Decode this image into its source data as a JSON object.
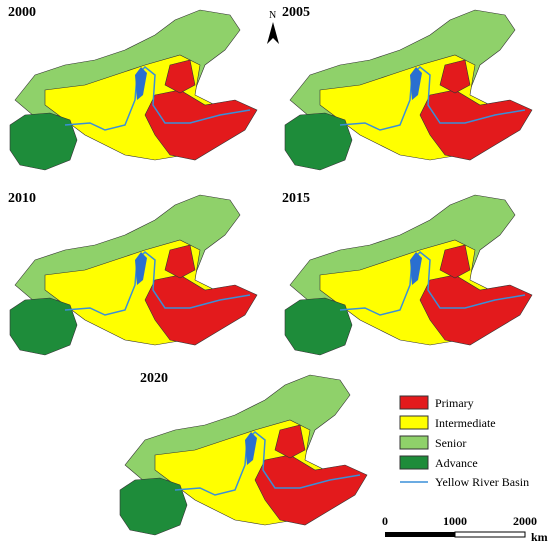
{
  "panels": [
    {
      "label": "2000"
    },
    {
      "label": "2005"
    },
    {
      "label": "2010"
    },
    {
      "label": "2015"
    },
    {
      "label": "2020"
    }
  ],
  "north_arrow": "N",
  "legend": {
    "items": [
      "Primary",
      "Intermediate",
      "Senior",
      "Advance",
      "Yellow River Basin"
    ]
  },
  "scale_bar": {
    "ticks": [
      "0",
      "1000",
      "2000"
    ],
    "unit": "km"
  }
}
